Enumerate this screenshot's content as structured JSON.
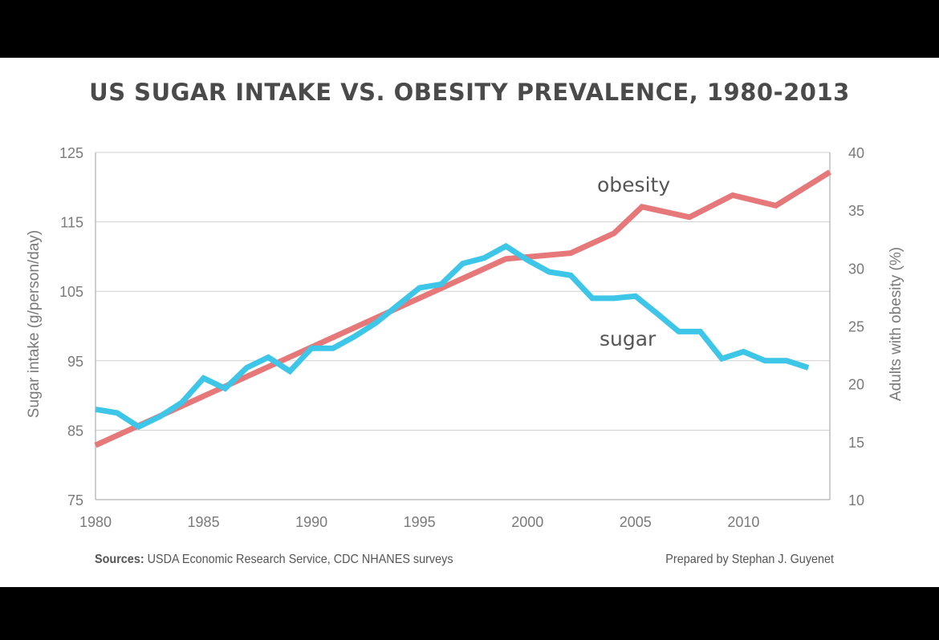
{
  "chart_data": {
    "type": "line",
    "title": "US SUGAR INTAKE VS. OBESITY PREVALENCE, 1980-2013",
    "x": [
      1980,
      1981,
      1982,
      1983,
      1984,
      1985,
      1986,
      1987,
      1988,
      1989,
      1990,
      1991,
      1992,
      1993,
      1994,
      1995,
      1996,
      1997,
      1998,
      1999,
      2000,
      2001,
      2002,
      2003,
      2004,
      2005,
      2006,
      2007,
      2008,
      2009,
      2010,
      2011,
      2012,
      2013
    ],
    "xlim": [
      1980,
      2014
    ],
    "x_ticks": [
      "1980",
      "1985",
      "1990",
      "1995",
      "2000",
      "2005",
      "2010"
    ],
    "y_left": {
      "label": "Sugar intake (g/person/day)",
      "lim": [
        75,
        125
      ],
      "ticks": [
        "125",
        "115",
        "105",
        "95",
        "85",
        "75"
      ]
    },
    "y_right": {
      "label": "Adults with obesity (%)",
      "lim": [
        10,
        40
      ],
      "ticks": [
        "40",
        "35",
        "30",
        "25",
        "20",
        "15",
        "10"
      ]
    },
    "grid": true,
    "series": [
      {
        "name": "sugar",
        "axis": "left",
        "color": "#3ec6e8",
        "values": [
          88.0,
          87.5,
          85.5,
          87.0,
          89.0,
          92.5,
          91.0,
          94.0,
          95.5,
          93.5,
          96.8,
          96.8,
          98.5,
          100.5,
          103.0,
          105.5,
          106.0,
          109.0,
          109.8,
          111.5,
          109.5,
          107.8,
          107.3,
          104.0,
          104.0,
          104.3,
          101.8,
          99.2,
          99.2,
          95.3,
          96.3,
          95.0,
          95.0,
          94.0
        ]
      },
      {
        "name": "obesity",
        "axis": "right",
        "color": "#e6787a",
        "x": [
          1980,
          1999,
          2002,
          2004,
          2005.3,
          2007.5,
          2009.5,
          2011.5,
          2014
        ],
        "values": [
          14.7,
          30.8,
          31.3,
          33.0,
          35.3,
          34.4,
          36.3,
          35.4,
          38.3
        ]
      }
    ],
    "annotations": [
      {
        "text": "obesity",
        "series": "obesity"
      },
      {
        "text": "sugar",
        "series": "sugar"
      }
    ]
  },
  "footer": {
    "sources_label": "Sources:",
    "sources_text": " USDA Economic Research Service, CDC NHANES surveys",
    "prepared": "Prepared by Stephan J. Guyenet"
  }
}
